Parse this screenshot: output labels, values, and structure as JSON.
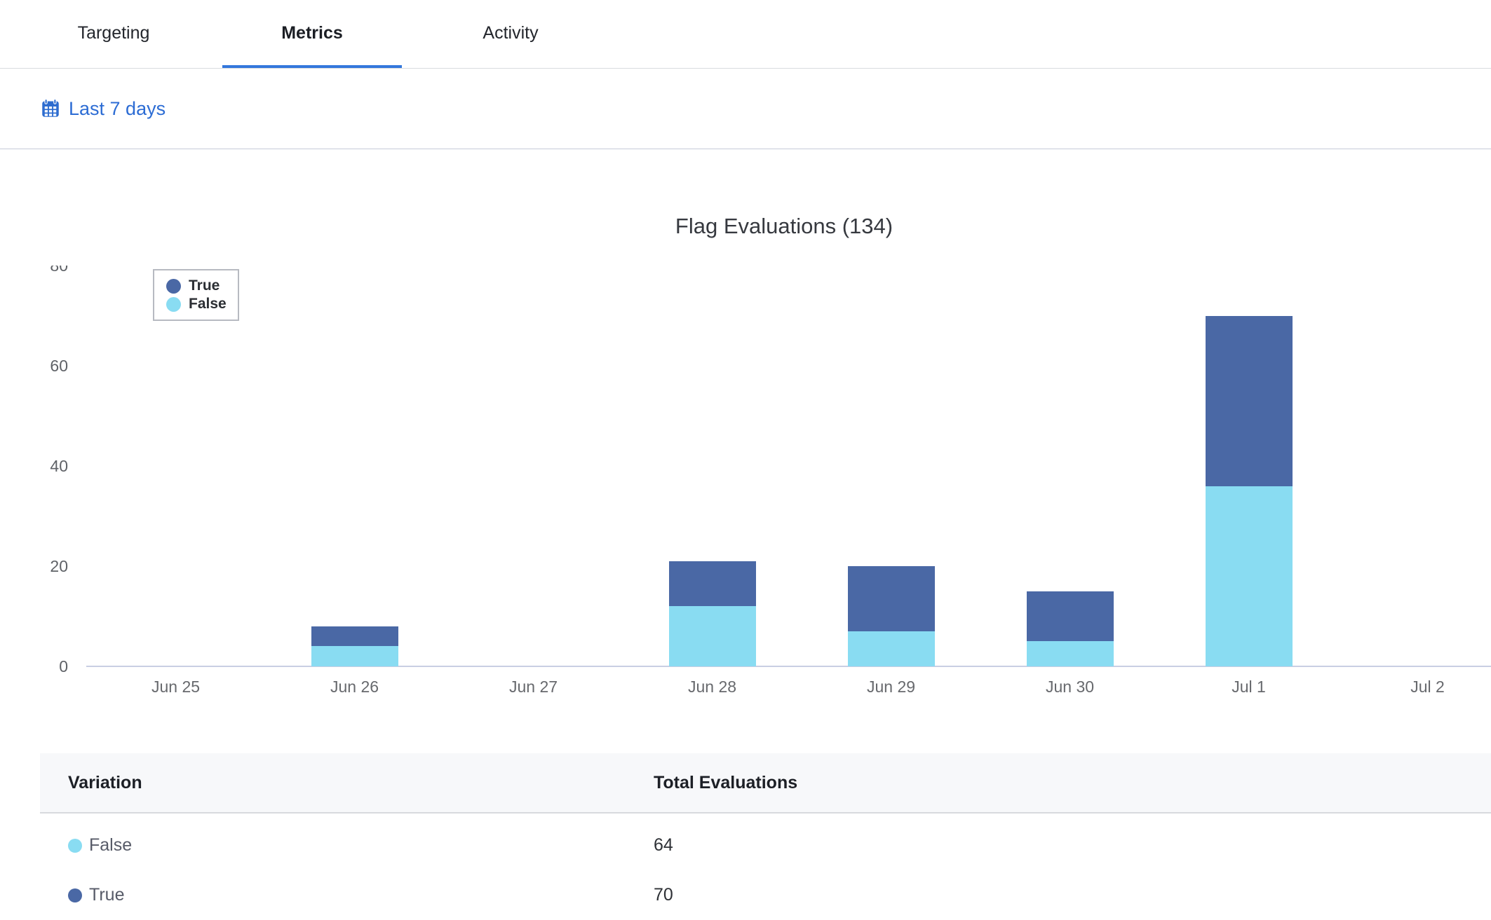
{
  "tabs": [
    {
      "label": "Targeting",
      "active": false
    },
    {
      "label": "Metrics",
      "active": true
    },
    {
      "label": "Activity",
      "active": false
    }
  ],
  "filter": {
    "date_range_label": "Last 7 days",
    "icon": "calendar-icon",
    "link_color": "#2c6cd4"
  },
  "chart_data": {
    "type": "bar",
    "stacked": true,
    "title": "Flag Evaluations (134)",
    "total_evaluations": 134,
    "categories": [
      "Jun 25",
      "Jun 26",
      "Jun 27",
      "Jun 28",
      "Jun 29",
      "Jun 30",
      "Jul 1",
      "Jul 2"
    ],
    "series": [
      {
        "name": "True",
        "color": "#4a68a5",
        "values": [
          0,
          4,
          0,
          9,
          13,
          10,
          34,
          0
        ]
      },
      {
        "name": "False",
        "color": "#89dcf2",
        "values": [
          0,
          4,
          0,
          12,
          7,
          5,
          36,
          0
        ]
      }
    ],
    "ylim": [
      0,
      80
    ],
    "yticks": [
      0,
      20,
      40,
      60,
      80
    ],
    "legend_position": "top-left",
    "grid": false,
    "axis_color": "#c9cfe3"
  },
  "table": {
    "headers": [
      "Variation",
      "Total Evaluations"
    ],
    "rows": [
      {
        "variation": "False",
        "color": "#89dcf2",
        "total": "64"
      },
      {
        "variation": "True",
        "color": "#4a68a5",
        "total": "70"
      }
    ]
  },
  "colors": {
    "accent_blue": "#3377dc",
    "bar_true": "#4a68a5",
    "bar_false": "#89dcf2",
    "divider": "#d9dbdf",
    "divider_lower": "#c6cbd9",
    "table_header_bg": "#f7f8fa"
  }
}
